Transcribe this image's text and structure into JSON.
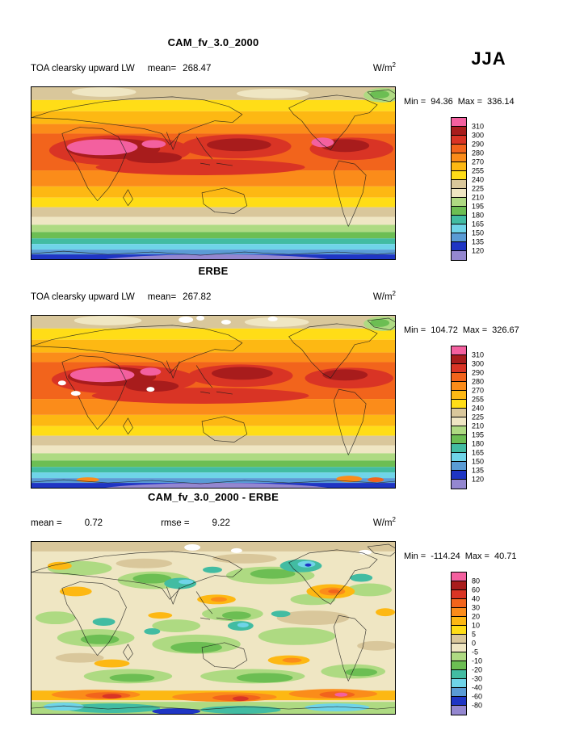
{
  "season": "JJA",
  "palette": [
    "#F3609F",
    "#A81C1C",
    "#D93425",
    "#F2641C",
    "#FB8C1A",
    "#FDB813",
    "#FFDD17",
    "#D9C79B",
    "#EFE6C3",
    "#AEDA82",
    "#6CBE53",
    "#42BCA2",
    "#6FD4E8",
    "#5A9BD5",
    "#1F35C4",
    "#9487D0"
  ],
  "panels": [
    {
      "id": "cam",
      "title": "CAM_fv_3.0_2000",
      "variable": "TOA clearsky upward LW",
      "mean_label": "mean=",
      "mean": "268.47",
      "units_base": "W/m",
      "units_exp": "2",
      "min_label": "Min =",
      "min": "94.36",
      "max_label": "Max =",
      "max": "336.14",
      "colorbar_labels": [
        "310",
        "300",
        "290",
        "280",
        "270",
        "255",
        "240",
        "225",
        "210",
        "195",
        "180",
        "165",
        "150",
        "135",
        "120"
      ]
    },
    {
      "id": "erbe",
      "title": "ERBE",
      "variable": "TOA clearsky upward LW",
      "mean_label": "mean=",
      "mean": "267.82",
      "units_base": "W/m",
      "units_exp": "2",
      "min_label": "Min =",
      "min": "104.72",
      "max_label": "Max =",
      "max": "326.67",
      "colorbar_labels": [
        "310",
        "300",
        "290",
        "280",
        "270",
        "255",
        "240",
        "225",
        "210",
        "195",
        "180",
        "165",
        "150",
        "135",
        "120"
      ]
    },
    {
      "id": "diff",
      "title": "CAM_fv_3.0_2000 - ERBE",
      "mean_label": "mean =",
      "mean": "0.72",
      "rmse_label": "rmse =",
      "rmse": "9.22",
      "units_base": "W/m",
      "units_exp": "2",
      "min_label": "Min =",
      "min": "-114.24",
      "max_label": "Max =",
      "max": "40.71",
      "colorbar_labels": [
        "80",
        "60",
        "40",
        "30",
        "20",
        "10",
        "5",
        "0",
        "-5",
        "-10",
        "-20",
        "-30",
        "-40",
        "-60",
        "-80"
      ]
    }
  ],
  "chart_data": [
    {
      "type": "heatmap",
      "title": "CAM_fv_3.0_2000",
      "variable": "TOA clearsky upward LW",
      "season": "JJA",
      "units": "W/m^2",
      "mean": 268.47,
      "min": 94.36,
      "max": 336.14,
      "contour_levels": [
        120,
        135,
        150,
        165,
        180,
        195,
        210,
        225,
        240,
        255,
        270,
        280,
        290,
        300,
        310
      ],
      "legend_position": "right",
      "projection": "global latitude-longitude map"
    },
    {
      "type": "heatmap",
      "title": "ERBE",
      "variable": "TOA clearsky upward LW",
      "season": "JJA",
      "units": "W/m^2",
      "mean": 267.82,
      "min": 104.72,
      "max": 326.67,
      "contour_levels": [
        120,
        135,
        150,
        165,
        180,
        195,
        210,
        225,
        240,
        255,
        270,
        280,
        290,
        300,
        310
      ],
      "legend_position": "right",
      "projection": "global latitude-longitude map"
    },
    {
      "type": "heatmap",
      "title": "CAM_fv_3.0_2000 - ERBE",
      "variable": "TOA clearsky upward LW difference",
      "season": "JJA",
      "units": "W/m^2",
      "mean": 0.72,
      "rmse": 9.22,
      "min": -114.24,
      "max": 40.71,
      "contour_levels": [
        -80,
        -60,
        -40,
        -30,
        -20,
        -10,
        -5,
        0,
        5,
        10,
        20,
        30,
        40,
        60,
        80
      ],
      "legend_position": "right",
      "projection": "global latitude-longitude map"
    }
  ]
}
